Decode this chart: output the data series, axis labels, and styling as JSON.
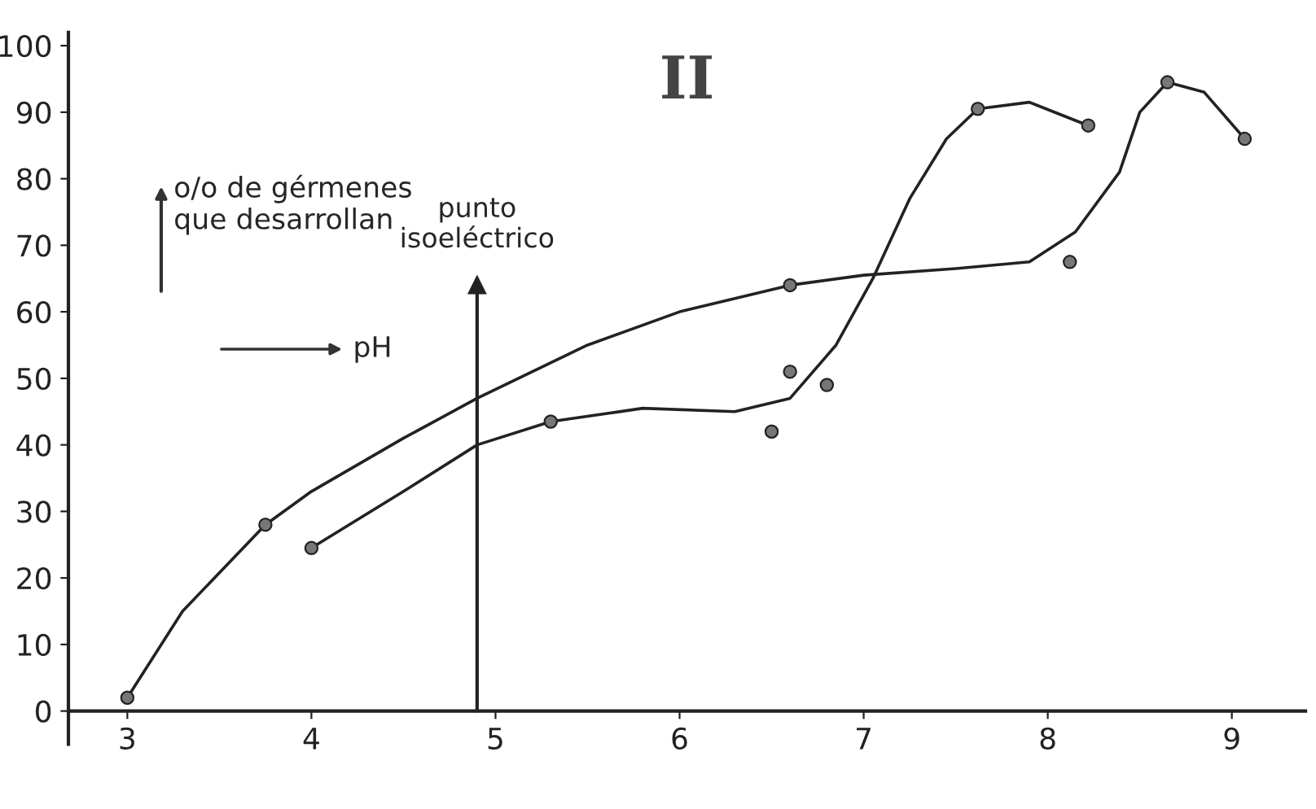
{
  "chart_data": {
    "type": "line",
    "title": "II",
    "annotations": [
      "o/o de gérmenes\nque desarrollan",
      "pH"
    ],
    "ref_lines": [
      {
        "axis": "x",
        "value": 4.9,
        "label": "punto\nisoeléctrico"
      }
    ],
    "series": [
      {
        "marker": "none",
        "color": "#222222",
        "x": [
          3,
          3.3,
          3.75,
          4,
          4.5,
          4.9,
          5.5,
          6,
          6.6,
          7,
          7.5,
          7.9,
          8.15,
          8.39,
          8.5,
          8.65,
          8.85,
          9.07
        ],
        "values": [
          2,
          15,
          28,
          33,
          41,
          47,
          55,
          60,
          64,
          65.5,
          66.5,
          67.5,
          72,
          81,
          90,
          94.5,
          93,
          86
        ]
      },
      {
        "marker": "none",
        "color": "#222222",
        "x": [
          4,
          4.5,
          4.9,
          5.3,
          5.8,
          6.3,
          6.6,
          6.85,
          7.05,
          7.25,
          7.45,
          7.62,
          7.9,
          8.22
        ],
        "values": [
          24.5,
          33,
          40,
          43.5,
          45.5,
          45,
          47,
          55,
          65,
          77,
          86,
          90.5,
          91.5,
          88
        ]
      },
      {
        "type": "scatter",
        "marker": "circle",
        "color": "#777777",
        "x": [
          3,
          3.75,
          6.6,
          8.12,
          8.65,
          9.07
        ],
        "values": [
          2,
          28,
          64,
          67.5,
          94.5,
          86
        ]
      },
      {
        "type": "scatter",
        "marker": "circle",
        "color": "#777777",
        "x": [
          4,
          5.3,
          6.5,
          6.6,
          6.8,
          7.62,
          8.22
        ],
        "values": [
          24.5,
          43.5,
          42,
          51,
          49,
          90.5,
          88
        ]
      }
    ],
    "xlim": [
      2.68,
      9.4
    ],
    "xticks": [
      3,
      4,
      5,
      6,
      7,
      8,
      9
    ],
    "ylim": [
      -5,
      102
    ],
    "yticks": [
      0,
      10,
      20,
      30,
      40,
      50,
      60,
      70,
      80,
      90,
      100
    ],
    "line_style": "solid",
    "grid": false,
    "legend": false
  }
}
